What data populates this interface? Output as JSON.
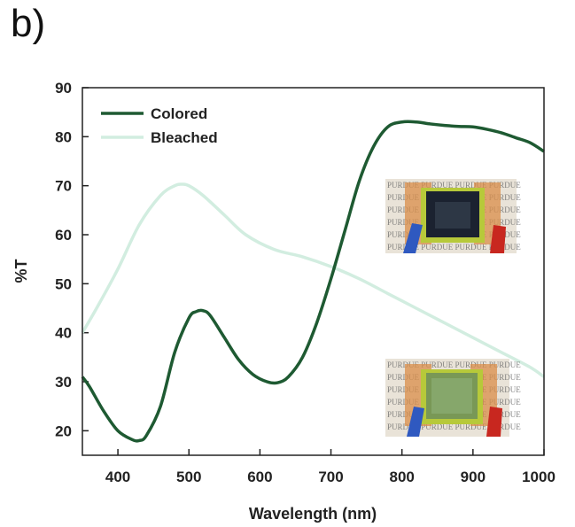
{
  "panel_label": "b)",
  "chart_data": {
    "type": "line",
    "title": "",
    "xlabel": "Wavelength (nm)",
    "ylabel": "%T",
    "xlim": [
      350,
      1000
    ],
    "ylim": [
      15,
      90
    ],
    "xticks": [
      400,
      500,
      600,
      700,
      800,
      900,
      1000
    ],
    "yticks": [
      20,
      30,
      40,
      50,
      60,
      70,
      80,
      90
    ],
    "grid": false,
    "legend_position": "top-left",
    "series": [
      {
        "name": "Colored",
        "color": "#1e5a32",
        "x": [
          350,
          360,
          380,
          400,
          420,
          430,
          440,
          460,
          480,
          500,
          510,
          520,
          530,
          550,
          570,
          590,
          610,
          625,
          640,
          660,
          680,
          700,
          720,
          740,
          760,
          780,
          800,
          820,
          840,
          860,
          880,
          900,
          920,
          940,
          960,
          980,
          1000
        ],
        "y": [
          31,
          29,
          24,
          20,
          18.2,
          18,
          19,
          25,
          36,
          43,
          44.3,
          44.5,
          43.5,
          39,
          34.5,
          31.5,
          30,
          29.8,
          31,
          35,
          42,
          51,
          61,
          71,
          78,
          82,
          83,
          83,
          82.6,
          82.3,
          82.1,
          82,
          81.5,
          80.8,
          79.8,
          78.8,
          77
        ]
      },
      {
        "name": "Bleached",
        "color": "#d2ede0",
        "x": [
          350,
          370,
          400,
          430,
          460,
          480,
          490,
          500,
          520,
          550,
          580,
          620,
          660,
          700,
          740,
          780,
          820,
          860,
          900,
          940,
          980,
          1000
        ],
        "y": [
          40,
          45,
          53,
          62,
          68,
          70,
          70.3,
          70,
          68,
          64,
          60,
          57,
          55.5,
          53.5,
          51,
          48,
          45,
          42,
          39,
          36,
          33,
          31
        ]
      }
    ],
    "insets": [
      {
        "name": "colored-device-photo",
        "text": "PURDUE"
      },
      {
        "name": "bleached-device-photo",
        "text": "PURDUE"
      }
    ]
  }
}
